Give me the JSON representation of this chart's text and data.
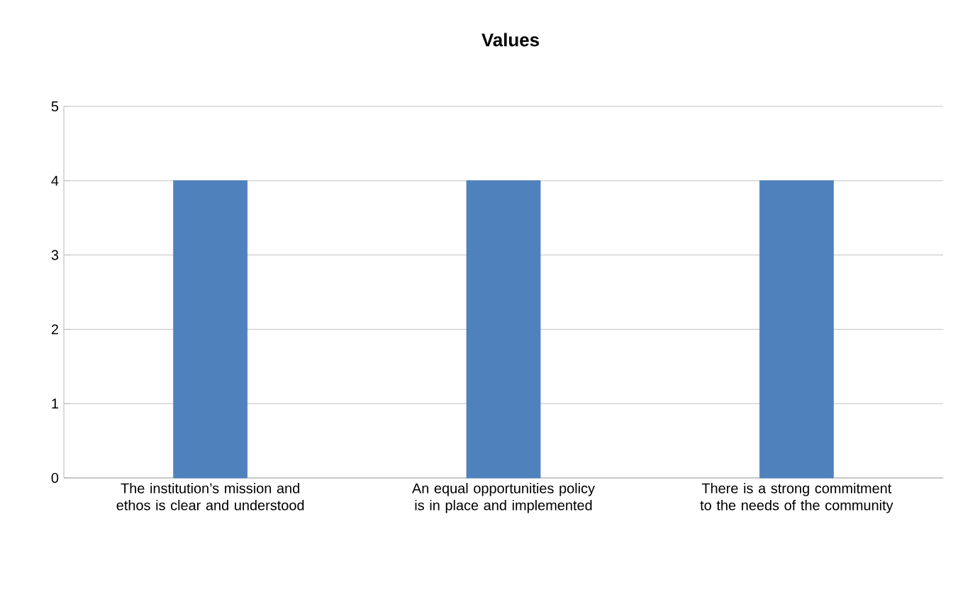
{
  "chart_data": {
    "type": "bar",
    "title": "Values",
    "categories": [
      "The institution’s mission and ethos is clear and understood",
      "An equal opportunities policy is in place and implemented",
      "There is a strong commitment to the needs of the community"
    ],
    "values": [
      4,
      4,
      4
    ],
    "color": "#4f81bd",
    "ylim": [
      0,
      5
    ],
    "yticks": [
      0,
      1,
      2,
      3,
      4,
      5
    ],
    "grid": "y"
  }
}
